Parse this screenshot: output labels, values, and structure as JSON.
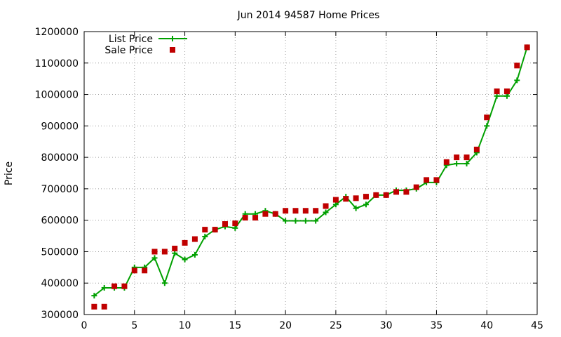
{
  "chart_data": {
    "type": "line",
    "title": "Jun 2014 94587 Home Prices",
    "xlabel": "",
    "ylabel": "Price",
    "xlim": [
      0,
      45
    ],
    "ylim": [
      300000,
      1200000
    ],
    "xticks": [
      0,
      5,
      10,
      15,
      20,
      25,
      30,
      35,
      40,
      45
    ],
    "yticks": [
      300000,
      400000,
      500000,
      600000,
      700000,
      800000,
      900000,
      1000000,
      1100000,
      1200000
    ],
    "grid": true,
    "legend_position": "top-left",
    "series": [
      {
        "name": "List Price",
        "style": "line+cross",
        "color": "#00a000",
        "x": [
          1,
          2,
          3,
          4,
          5,
          6,
          7,
          8,
          9,
          10,
          11,
          12,
          13,
          14,
          15,
          16,
          17,
          18,
          19,
          20,
          21,
          22,
          23,
          24,
          25,
          26,
          27,
          28,
          29,
          30,
          31,
          32,
          33,
          34,
          35,
          36,
          37,
          38,
          39,
          40,
          41,
          42,
          43,
          44
        ],
        "y": [
          360000,
          385000,
          385000,
          385000,
          450000,
          450000,
          480000,
          400000,
          495000,
          475000,
          490000,
          548000,
          570000,
          580000,
          575000,
          620000,
          620000,
          630000,
          620000,
          598000,
          598000,
          598000,
          598000,
          625000,
          650000,
          675000,
          638000,
          650000,
          680000,
          680000,
          695000,
          695000,
          700000,
          720000,
          720000,
          775000,
          780000,
          780000,
          815000,
          900000,
          995000,
          995000,
          1045000,
          1150000
        ]
      },
      {
        "name": "Sale Price",
        "style": "square",
        "color": "#c00000",
        "x": [
          1,
          2,
          3,
          4,
          5,
          6,
          7,
          8,
          9,
          10,
          11,
          12,
          13,
          14,
          15,
          16,
          17,
          18,
          19,
          20,
          21,
          22,
          23,
          24,
          25,
          26,
          27,
          28,
          29,
          30,
          31,
          32,
          33,
          34,
          35,
          36,
          37,
          38,
          39,
          40,
          41,
          42,
          43,
          44
        ],
        "y": [
          325000,
          325000,
          390000,
          390000,
          440000,
          440000,
          500000,
          500000,
          510000,
          528000,
          540000,
          570000,
          570000,
          588000,
          590000,
          608000,
          608000,
          620000,
          620000,
          630000,
          630000,
          630000,
          630000,
          645000,
          665000,
          668000,
          670000,
          675000,
          680000,
          680000,
          690000,
          690000,
          705000,
          728000,
          728000,
          785000,
          800000,
          800000,
          825000,
          927000,
          1010000,
          1010000,
          1092000,
          1150000
        ]
      }
    ]
  }
}
